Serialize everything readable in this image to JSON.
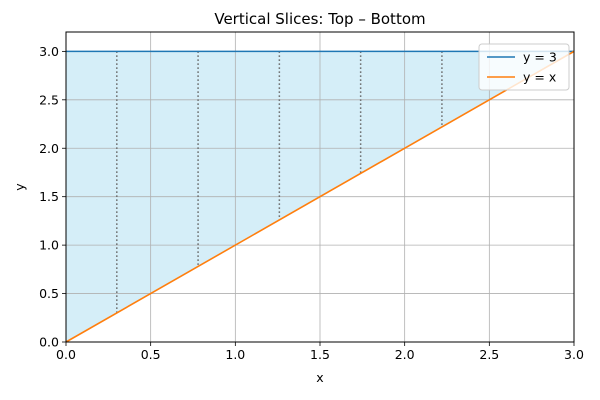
{
  "chart_data": {
    "type": "line",
    "title": "Vertical Slices: Top – Bottom",
    "xlabel": "x",
    "ylabel": "y",
    "xlim": [
      0,
      3
    ],
    "ylim": [
      0,
      3.2
    ],
    "grid": true,
    "legend_position": "top-right",
    "x_ticks": [
      0.0,
      0.5,
      1.0,
      1.5,
      2.0,
      2.5,
      3.0
    ],
    "x_tick_labels": [
      "0.0",
      "0.5",
      "1.0",
      "1.5",
      "2.0",
      "2.5",
      "3.0"
    ],
    "y_ticks": [
      0.0,
      0.5,
      1.0,
      1.5,
      2.0,
      2.5,
      3.0
    ],
    "y_tick_labels": [
      "0.0",
      "0.5",
      "1.0",
      "1.5",
      "2.0",
      "2.5",
      "3.0"
    ],
    "series": [
      {
        "name": "y = 3",
        "color": "#1f77b4",
        "x": [
          0,
          3
        ],
        "y": [
          3,
          3
        ]
      },
      {
        "name": "y = x",
        "color": "#ff7f0e",
        "x": [
          0,
          3
        ],
        "y": [
          0,
          3
        ]
      }
    ],
    "shaded_region": {
      "between": [
        "y = 3",
        "y = x"
      ],
      "x_range": [
        0,
        3
      ],
      "color": "#87ceeb"
    },
    "slices": {
      "x": [
        0.3,
        0.78,
        1.26,
        1.74,
        2.22
      ],
      "top": 3,
      "bottom_function": "y = x",
      "color": "#666666"
    }
  }
}
